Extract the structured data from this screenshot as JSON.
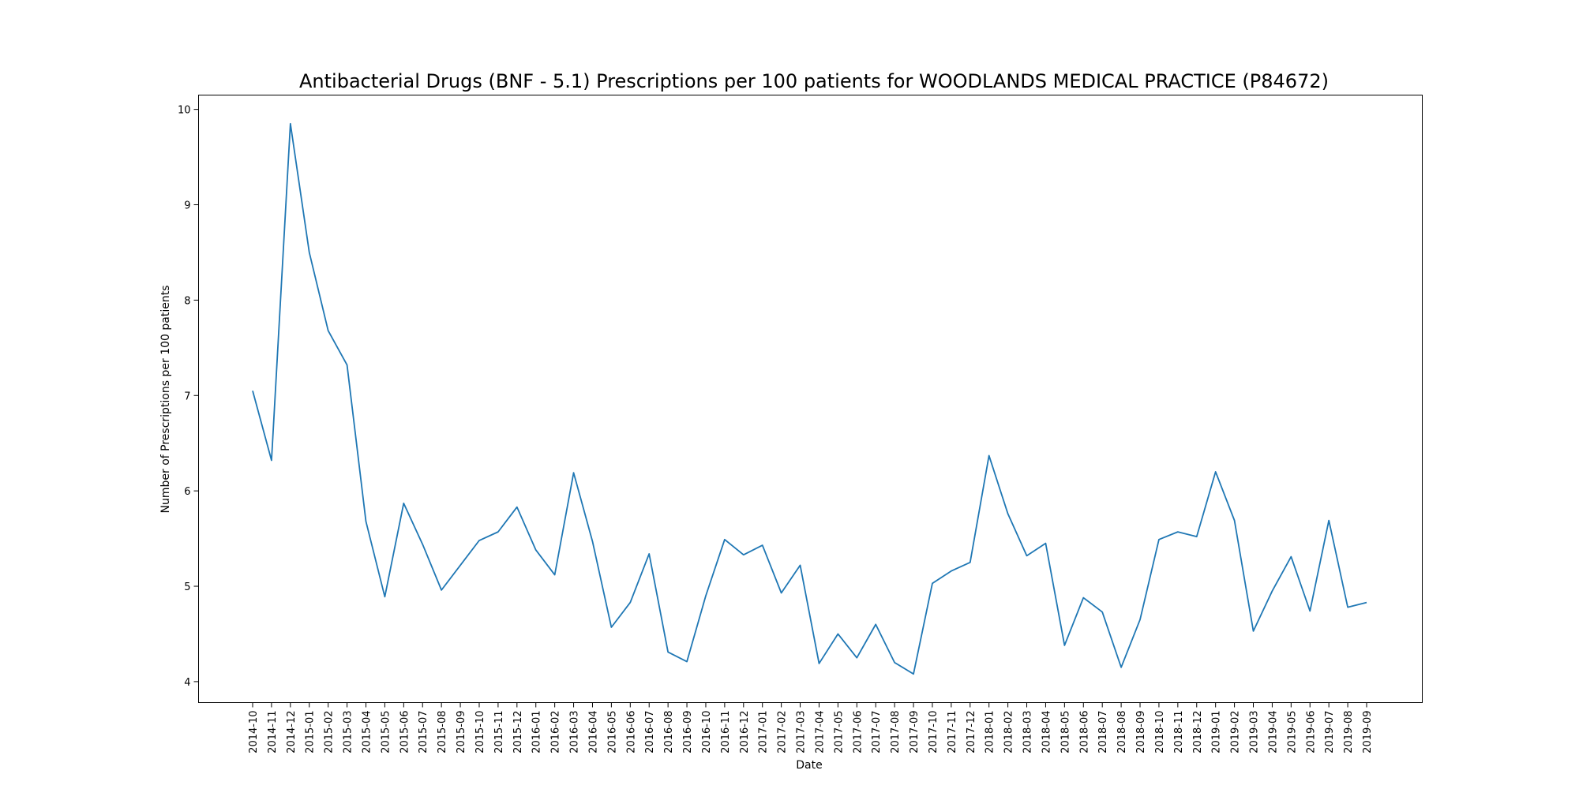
{
  "chart_data": {
    "type": "line",
    "title": "Antibacterial Drugs (BNF - 5.1) Prescriptions per 100 patients for WOODLANDS MEDICAL PRACTICE (P84672)",
    "xlabel": "Date",
    "ylabel": "Number of Prescriptions per 100 patients",
    "ylim": [
      3.78,
      10.15
    ],
    "yticks": [
      4,
      5,
      6,
      7,
      8,
      9,
      10
    ],
    "grid": false,
    "legend": "none",
    "line_color": "#1f77b4",
    "categories": [
      "2014-10",
      "2014-11",
      "2014-12",
      "2015-01",
      "2015-02",
      "2015-03",
      "2015-04",
      "2015-05",
      "2015-06",
      "2015-07",
      "2015-08",
      "2015-09",
      "2015-10",
      "2015-11",
      "2015-12",
      "2016-01",
      "2016-02",
      "2016-03",
      "2016-04",
      "2016-05",
      "2016-06",
      "2016-07",
      "2016-08",
      "2016-09",
      "2016-10",
      "2016-11",
      "2016-12",
      "2017-01",
      "2017-02",
      "2017-03",
      "2017-04",
      "2017-05",
      "2017-06",
      "2017-07",
      "2017-08",
      "2017-09",
      "2017-10",
      "2017-11",
      "2017-12",
      "2018-01",
      "2018-02",
      "2018-03",
      "2018-04",
      "2018-05",
      "2018-06",
      "2018-07",
      "2018-08",
      "2018-09",
      "2018-10",
      "2018-11",
      "2018-12",
      "2019-01",
      "2019-02",
      "2019-03",
      "2019-04",
      "2019-05",
      "2019-06",
      "2019-07",
      "2019-08",
      "2019-09"
    ],
    "values": [
      7.05,
      6.32,
      9.85,
      8.5,
      7.68,
      7.32,
      5.68,
      4.89,
      5.87,
      5.44,
      4.96,
      5.22,
      5.48,
      5.57,
      5.83,
      5.38,
      5.12,
      6.19,
      5.47,
      4.57,
      4.83,
      5.34,
      4.31,
      4.21,
      4.9,
      5.49,
      5.33,
      5.43,
      4.93,
      5.22,
      4.19,
      4.5,
      4.25,
      4.6,
      4.2,
      4.08,
      5.03,
      5.16,
      5.25,
      6.37,
      5.76,
      5.32,
      5.45,
      4.38,
      4.88,
      4.73,
      4.15,
      4.65,
      5.49,
      5.57,
      5.52,
      6.2,
      5.69,
      4.53,
      4.95,
      5.31,
      4.74,
      5.69,
      4.78,
      4.83
    ]
  }
}
